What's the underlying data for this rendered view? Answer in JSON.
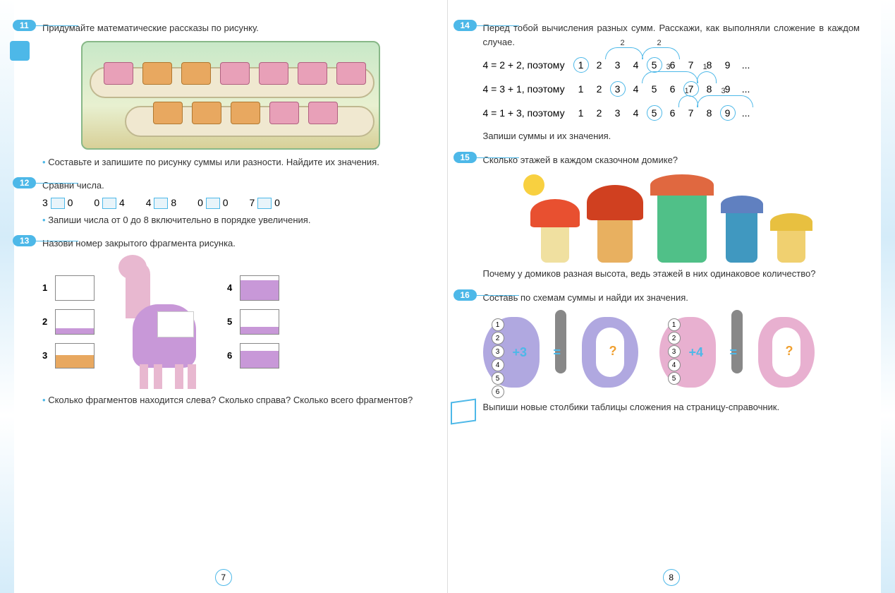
{
  "colors": {
    "accent": "#4db8e8",
    "pink": "#e8a0b8",
    "orange": "#e8a860",
    "purple": "#c898d8",
    "lightpink": "#e8b8d0"
  },
  "page_left_num": "7",
  "page_right_num": "8",
  "task11": {
    "num": "11",
    "text": "Придумайте математические рассказы по рисунку.",
    "sub": "Составьте и запишите по рисунку суммы или разности. Найдите их значения."
  },
  "task12": {
    "num": "12",
    "text": "Сравни числа.",
    "pairs": [
      [
        "3",
        "0"
      ],
      [
        "0",
        "4"
      ],
      [
        "4",
        "8"
      ],
      [
        "0",
        "0"
      ],
      [
        "7",
        "0"
      ]
    ],
    "sub": "Запиши числа от 0 до 8 включительно в порядке увеличения."
  },
  "task13": {
    "num": "13",
    "text": "Назови номер закрытого фрагмента рисунка.",
    "frags_left": [
      "1",
      "2",
      "3"
    ],
    "frags_right": [
      "4",
      "5",
      "6"
    ],
    "sub": "Сколько фрагментов находится слева? Сколько справа? Сколько всего фрагментов?"
  },
  "task14": {
    "num": "14",
    "text": "Перед тобой вычисления разных сумм. Расскажи, как выполняли сложение в каждом случае.",
    "lines": [
      {
        "eq": "4 = 2 + 2,  поэтому",
        "nums": [
          "1",
          "2",
          "3",
          "4",
          "5",
          "6",
          "7",
          "8",
          "9"
        ],
        "circ": [
          0,
          4
        ],
        "arcs": [
          {
            "from": 0,
            "to": 2,
            "label": "2"
          },
          {
            "from": 2,
            "to": 4,
            "label": "2"
          }
        ]
      },
      {
        "eq": "4 = 3 + 1,  поэтому",
        "nums": [
          "1",
          "2",
          "3",
          "4",
          "5",
          "6",
          "7",
          "8",
          "9"
        ],
        "circ": [
          2,
          6
        ],
        "arcs": [
          {
            "from": 2,
            "to": 5,
            "label": "3"
          },
          {
            "from": 5,
            "to": 6,
            "label": "1"
          }
        ]
      },
      {
        "eq": "4 = 1 + 3,  поэтому",
        "nums": [
          "1",
          "2",
          "3",
          "4",
          "5",
          "6",
          "7",
          "8",
          "9"
        ],
        "circ": [
          4,
          8
        ],
        "arcs": [
          {
            "from": 4,
            "to": 5,
            "label": "1"
          },
          {
            "from": 5,
            "to": 8,
            "label": "3"
          }
        ]
      }
    ],
    "sub": "Запиши суммы и их значения."
  },
  "task15": {
    "num": "15",
    "text": "Сколько этажей в каждом сказочном домике?",
    "sub": "Почему у домиков разная высота, ведь этажей в них одинаковое количество?"
  },
  "task16": {
    "num": "16",
    "text": "Составь по схемам суммы и найди их значения.",
    "bf1": {
      "nums": [
        "1",
        "2",
        "3",
        "4",
        "5",
        "6"
      ],
      "op": "+3",
      "color": "#b0a8e0"
    },
    "bf2": {
      "nums": [
        "1",
        "2",
        "3",
        "4",
        "5"
      ],
      "op": "+4",
      "color": "#e8b0d0"
    },
    "sub": "Выпиши новые столбики таблицы сложения на страницу-справочник."
  }
}
